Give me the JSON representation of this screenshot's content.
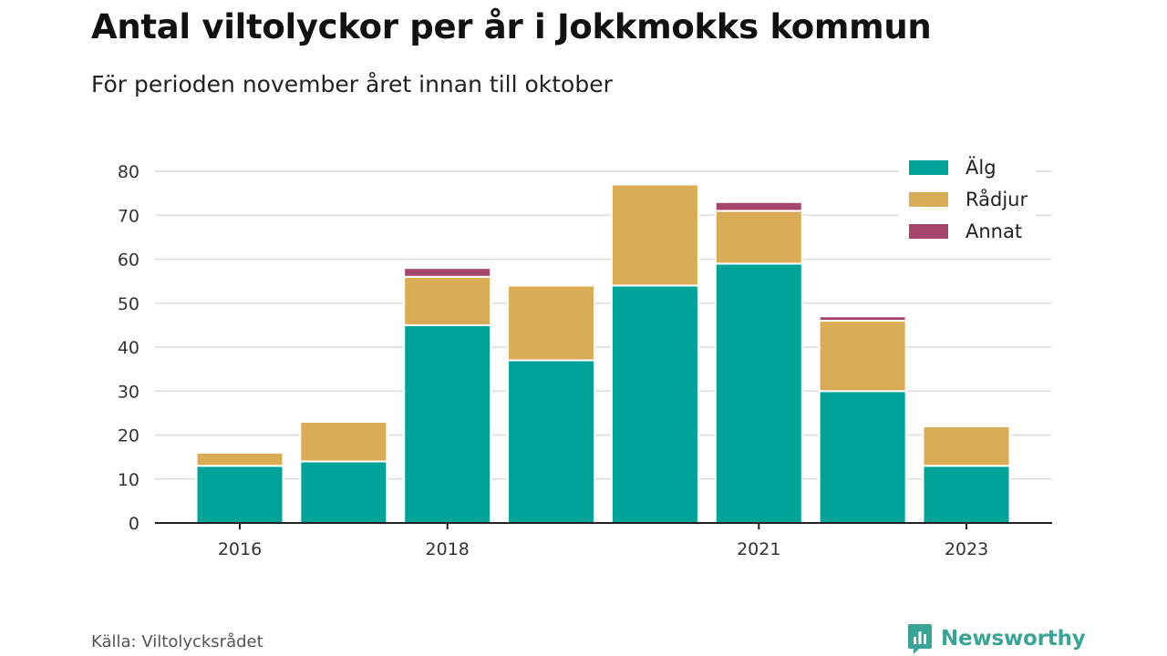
{
  "title": "Antal viltolyckor per år i Jokkmokks kommun",
  "subtitle": "För perioden november året innan till oktober",
  "source": "Källa: Viltolycksrådet",
  "brand": "Newsworthy",
  "chart_data": {
    "type": "bar",
    "stacked": true,
    "categories": [
      "2016",
      "2017",
      "2018",
      "2019",
      "2020",
      "2021",
      "2022",
      "2023"
    ],
    "x_tick_labels": [
      "2016",
      "",
      "2018",
      "",
      "",
      "2021",
      "",
      "2023"
    ],
    "series": [
      {
        "name": "Älg",
        "color": "#00a398",
        "values": [
          13,
          14,
          45,
          37,
          54,
          59,
          30,
          13
        ]
      },
      {
        "name": "Rådjur",
        "color": "#d9ac55",
        "values": [
          3,
          9,
          11,
          17,
          23,
          12,
          16,
          9
        ]
      },
      {
        "name": "Annat",
        "color": "#a6456c",
        "values": [
          0,
          0,
          2,
          0,
          0,
          2,
          1,
          0
        ]
      }
    ],
    "ylim": [
      0,
      80
    ],
    "yticks": [
      0,
      10,
      20,
      30,
      40,
      50,
      60,
      70,
      80
    ],
    "grid": true,
    "legend": "top-right"
  }
}
